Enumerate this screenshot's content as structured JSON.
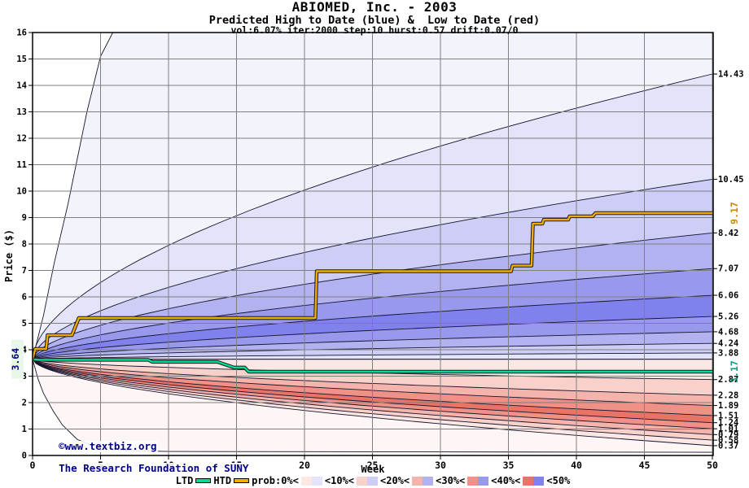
{
  "header": {
    "title": "ABIOMED, Inc. - 2003",
    "subtitle": "Predicted High to Date (blue) &  Low to Date (red)",
    "params": "vol:6.07% iter:2000 step:10 hurst:0.57 drift:0.07/0"
  },
  "watermark": {
    "line1": "©www.textbiz.org",
    "line2": "The Research Foundation of SUNY",
    "color": "#00008B"
  },
  "axis_labels": {
    "x": "Week",
    "y": "Price ($)"
  },
  "legend": {
    "ltd_label": "LTD",
    "htd_label": "HTD",
    "prob_labels": [
      "prob:0%<",
      "<10%<",
      "<20%<",
      "<30%<",
      "<40%<",
      "<50%"
    ]
  },
  "chart_data": {
    "type": "area",
    "subtype": "probability-fan",
    "title": "ABIOMED, Inc. - 2003",
    "xlabel": "Week",
    "ylabel": "Price ($)",
    "xlim": [
      0,
      50
    ],
    "ylim": [
      0,
      16
    ],
    "x_ticks": [
      0,
      5,
      10,
      15,
      20,
      25,
      30,
      35,
      40,
      45,
      50
    ],
    "y_tick_step": 1,
    "grid": true,
    "grid_color": "#7F7F7F",
    "start_price": 3.64,
    "start_label": {
      "text": "3.64",
      "color": "#000080",
      "bg": "#E9F7E9"
    },
    "curve_exponent": 0.57,
    "high_fan": {
      "color_family": "blue",
      "band_end_values": [
        14.43,
        10.45,
        8.42,
        7.07,
        6.06,
        5.26,
        4.68,
        4.24,
        3.88
      ],
      "labels": [
        "14.43",
        "10.45",
        "8.42",
        "7.07",
        "6.06",
        "5.26",
        "4.68",
        "4.24",
        "3.88"
      ],
      "inner_value": 3.64,
      "max_boundary_polyline": [
        [
          0,
          3.64
        ],
        [
          0.8,
          5.3
        ],
        [
          1.6,
          7.3
        ],
        [
          2.6,
          9.5
        ],
        [
          4,
          13.0
        ],
        [
          5,
          15.1
        ],
        [
          6,
          16.1
        ],
        [
          7,
          17.0
        ],
        [
          50,
          17.5
        ]
      ],
      "shades": [
        "#F3F3FC",
        "#E3E3F9",
        "#CDCDF5",
        "#B2B2F0",
        "#9898EC",
        "#8181EE"
      ]
    },
    "low_fan": {
      "color_family": "red",
      "band_end_values": [
        2.87,
        2.28,
        1.89,
        1.51,
        1.24,
        1.01,
        0.79,
        0.58,
        0.37
      ],
      "labels": [
        "2.87",
        "2.28",
        "1.89",
        "1.51",
        "1.24",
        "1.01",
        "0.79",
        "0.58",
        "0.37"
      ],
      "inner_value": 3.64,
      "min_boundary_polyline": [
        [
          0,
          3.64
        ],
        [
          0.4,
          2.9
        ],
        [
          0.8,
          2.35
        ],
        [
          1.5,
          1.7
        ],
        [
          2.2,
          1.15
        ],
        [
          3.3,
          0.6
        ],
        [
          4.2,
          0.42
        ],
        [
          5,
          0.33
        ],
        [
          6.6,
          0.2
        ],
        [
          8,
          0.17
        ],
        [
          10,
          0.15
        ],
        [
          50,
          0.12
        ]
      ],
      "shades": [
        "#FEF6F5",
        "#FBE7E3",
        "#F8D1CB",
        "#F4B3AB",
        "#EF9187",
        "#E97366"
      ]
    },
    "htd_line": {
      "label": "HTD",
      "color": "#F2AC00",
      "outline": "#1A1A1A",
      "end_label": {
        "text": "9.17",
        "color": "#C8860B"
      },
      "points": [
        [
          0,
          3.64
        ],
        [
          0.2,
          4.03
        ],
        [
          1.0,
          4.03
        ],
        [
          1.1,
          4.55
        ],
        [
          2.9,
          4.55
        ],
        [
          3.4,
          5.2
        ],
        [
          20.8,
          5.2
        ],
        [
          20.9,
          6.97
        ],
        [
          35.2,
          6.97
        ],
        [
          35.3,
          7.18
        ],
        [
          36.7,
          7.18
        ],
        [
          36.8,
          8.77
        ],
        [
          37.5,
          8.77
        ],
        [
          37.6,
          8.92
        ],
        [
          39.4,
          8.92
        ],
        [
          39.5,
          9.05
        ],
        [
          41.2,
          9.05
        ],
        [
          41.4,
          9.17
        ],
        [
          50,
          9.17
        ]
      ]
    },
    "ltd_line": {
      "label": "LTD",
      "color": "#00DC96",
      "outline": "#1A1A1A",
      "end_label": {
        "text": "3.17",
        "color": "#009E7D"
      },
      "points": [
        [
          0,
          3.64
        ],
        [
          0.5,
          3.62
        ],
        [
          8.5,
          3.62
        ],
        [
          8.8,
          3.54
        ],
        [
          13.6,
          3.54
        ],
        [
          14.8,
          3.33
        ],
        [
          15.6,
          3.33
        ],
        [
          15.9,
          3.17
        ],
        [
          50,
          3.17
        ]
      ]
    }
  }
}
